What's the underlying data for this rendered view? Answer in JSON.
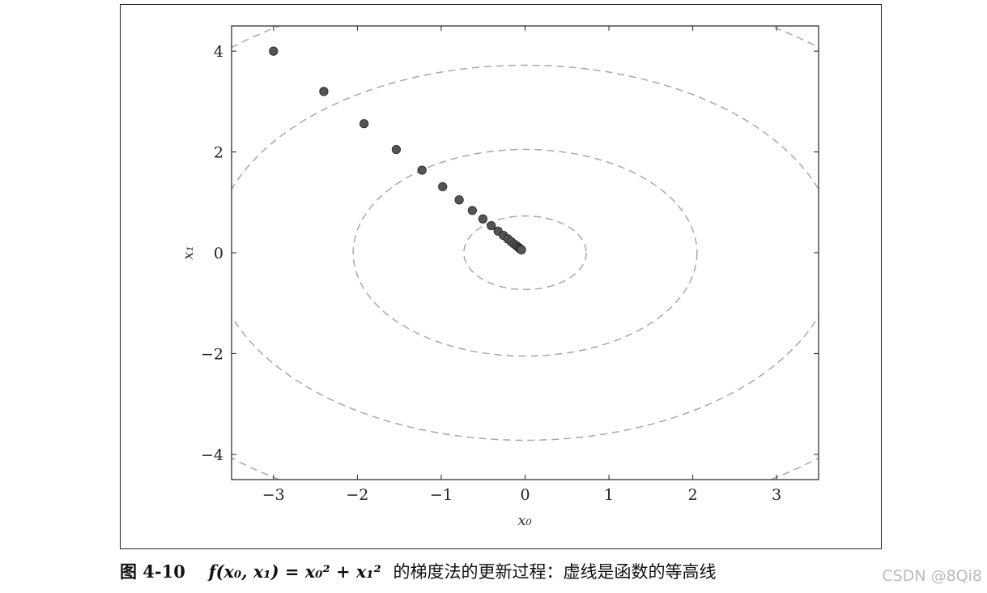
{
  "caption": {
    "figure_number": "图 4-10",
    "formula": "f(x₀, x₁) = x₀² + x₁²",
    "text": "的梯度法的更新过程：虚线是函数的等高线"
  },
  "watermark": "CSDN @8Qi8",
  "chart_data": {
    "type": "scatter",
    "xlabel": "x₀",
    "ylabel": "x₁",
    "xlim": [
      -3.5,
      3.5
    ],
    "ylim": [
      -4.5,
      4.5
    ],
    "x_ticks": [
      -3,
      -2,
      -1,
      0,
      1,
      2,
      3
    ],
    "y_ticks": [
      -4,
      -2,
      0,
      2,
      4
    ],
    "x_tick_labels": [
      "−3",
      "−2",
      "−1",
      "0",
      "1",
      "2",
      "3"
    ],
    "y_tick_labels": [
      "−4",
      "−2",
      "0",
      "2",
      "4"
    ],
    "grid": false,
    "contours": {
      "style": "dashed",
      "color": "#a8a8a8",
      "radii": [
        0.73,
        2.05,
        3.72,
        5.37
      ]
    },
    "points": {
      "color": "#555555",
      "x": [
        -3.0,
        -2.4,
        -1.92,
        -1.536,
        -1.229,
        -0.983,
        -0.786,
        -0.629,
        -0.503,
        -0.403,
        -0.322,
        -0.258,
        -0.206,
        -0.165,
        -0.132,
        -0.106,
        -0.084,
        -0.068,
        -0.054,
        -0.043
      ],
      "y": [
        4.0,
        3.2,
        2.56,
        2.048,
        1.638,
        1.311,
        1.049,
        0.839,
        0.671,
        0.537,
        0.429,
        0.344,
        0.275,
        0.22,
        0.176,
        0.141,
        0.113,
        0.09,
        0.072,
        0.058
      ]
    }
  }
}
